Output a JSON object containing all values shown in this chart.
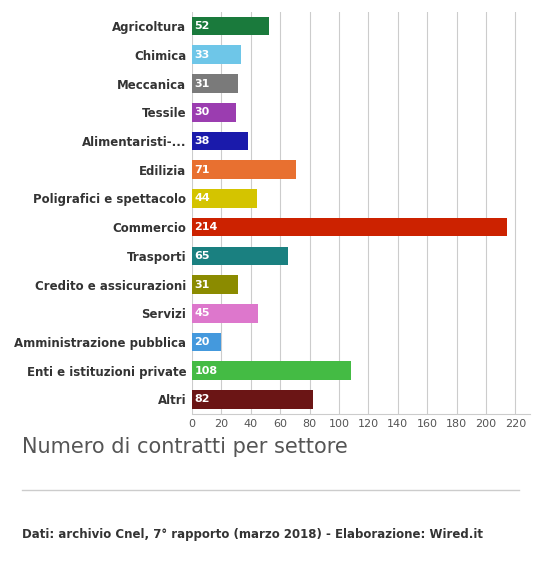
{
  "categories": [
    "Agricoltura",
    "Chimica",
    "Meccanica",
    "Tessile",
    "Alimentaristi-...",
    "Edilizia",
    "Poligrafici e spettacolo",
    "Commercio",
    "Trasporti",
    "Credito e assicurazioni",
    "Servizi",
    "Amministrazione pubblica",
    "Enti e istituzioni private",
    "Altri"
  ],
  "values": [
    52,
    33,
    31,
    30,
    38,
    71,
    44,
    214,
    65,
    31,
    45,
    20,
    108,
    82
  ],
  "colors": [
    "#1a7a3c",
    "#6ec6e8",
    "#7a7a7a",
    "#9b3db0",
    "#1a1aab",
    "#e87030",
    "#d4c400",
    "#cc2200",
    "#1a8080",
    "#8b8b00",
    "#dd77cc",
    "#4499dd",
    "#44bb44",
    "#6b1515"
  ],
  "title": "Numero di contratti per settore",
  "footnote": "Dati: archivio Cnel, 7° rapporto (marzo 2018) - Elaborazione: Wired.it",
  "xlim": [
    0,
    230
  ],
  "xticks": [
    0,
    20,
    40,
    60,
    80,
    100,
    120,
    140,
    160,
    180,
    200,
    220
  ],
  "background_color": "#ffffff",
  "label_color": "#ffffff",
  "bar_label_fontsize": 8.0,
  "category_fontsize": 8.5,
  "title_fontsize": 15,
  "footnote_fontsize": 8.5
}
